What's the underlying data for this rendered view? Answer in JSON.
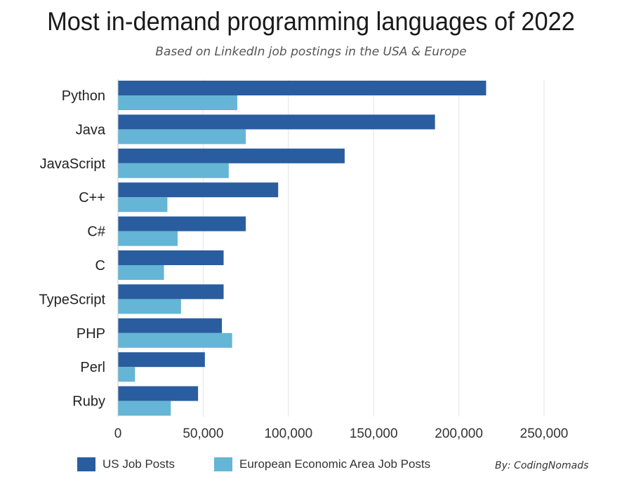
{
  "chart_data": {
    "type": "bar",
    "orientation": "horizontal",
    "title": "Most in-demand programming languages of 2022",
    "subtitle": "Based on LinkedIn job postings in the USA & Europe",
    "categories": [
      "Python",
      "Java",
      "JavaScript",
      "C++",
      "C#",
      "C",
      "TypeScript",
      "PHP",
      "Perl",
      "Ruby"
    ],
    "series": [
      {
        "name": "US Job Posts",
        "color": "#2a5d9f",
        "values": [
          216000,
          186000,
          133000,
          94000,
          75000,
          62000,
          62000,
          61000,
          51000,
          47000
        ]
      },
      {
        "name": "European Economic Area Job Posts",
        "color": "#64b5d6",
        "values": [
          70000,
          75000,
          65000,
          29000,
          35000,
          27000,
          37000,
          67000,
          10000,
          31000
        ]
      }
    ],
    "xlim": [
      0,
      250000
    ],
    "xticks": [
      0,
      50000,
      100000,
      150000,
      200000,
      250000
    ],
    "xtick_labels": [
      "0",
      "50,000",
      "100,000",
      "150,000",
      "200,000",
      "250,000"
    ],
    "grid": true,
    "legend_position": "bottom-left"
  },
  "credit": "By: CodingNomads"
}
